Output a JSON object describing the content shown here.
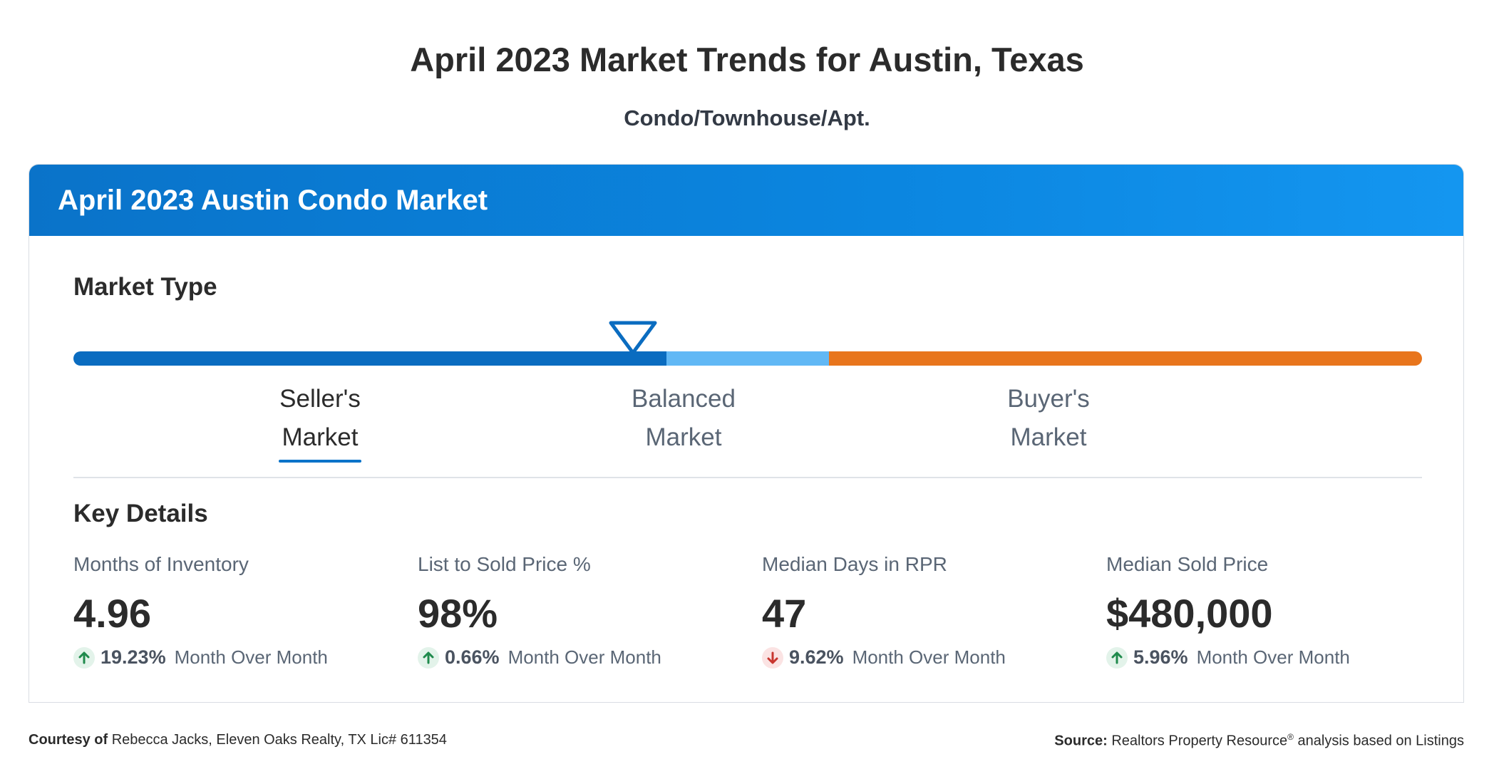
{
  "page": {
    "title": "April 2023 Market Trends for Austin, Texas",
    "subtitle": "Condo/Townhouse/Apt."
  },
  "card": {
    "title": "April 2023 Austin Condo Market",
    "header_color": "#0a73c9"
  },
  "market_type": {
    "heading": "Market Type",
    "segments": [
      {
        "name": "sellers",
        "color": "#0a6cc0",
        "fraction": 0.44
      },
      {
        "name": "balanced",
        "color": "#61b8f5",
        "fraction": 0.12
      },
      {
        "name": "buyers",
        "color": "#e8751c",
        "fraction": 0.44
      }
    ],
    "marker_position": 0.415,
    "labels": [
      {
        "line1": "Seller's",
        "line2": "Market",
        "selected": true
      },
      {
        "line1": "Balanced",
        "line2": "Market",
        "selected": false
      },
      {
        "line1": "Buyer's",
        "line2": "Market",
        "selected": false
      }
    ],
    "marker_icon": "down-triangle-icon"
  },
  "key_details": {
    "heading": "Key Details",
    "stats": [
      {
        "label": "Months of Inventory",
        "value": "4.96",
        "change": "19.23%",
        "direction": "up",
        "period": "Month Over Month"
      },
      {
        "label": "List to Sold Price %",
        "value": "98%",
        "change": "0.66%",
        "direction": "up",
        "period": "Month Over Month"
      },
      {
        "label": "Median Days in RPR",
        "value": "47",
        "change": "9.62%",
        "direction": "down",
        "period": "Month Over Month"
      },
      {
        "label": "Median Sold Price",
        "value": "$480,000",
        "change": "5.96%",
        "direction": "up",
        "period": "Month Over Month"
      }
    ],
    "colors": {
      "up": "#1f8a4c",
      "down": "#c8362f"
    }
  },
  "footer": {
    "courtesy_label": "Courtesy of",
    "courtesy_text": "Rebecca Jacks, Eleven Oaks Realty, TX Lic# 611354",
    "source_label": "Source:",
    "source_text_a": "Realtors Property Resource",
    "source_reg": "®",
    "source_text_b": " analysis based on Listings"
  }
}
